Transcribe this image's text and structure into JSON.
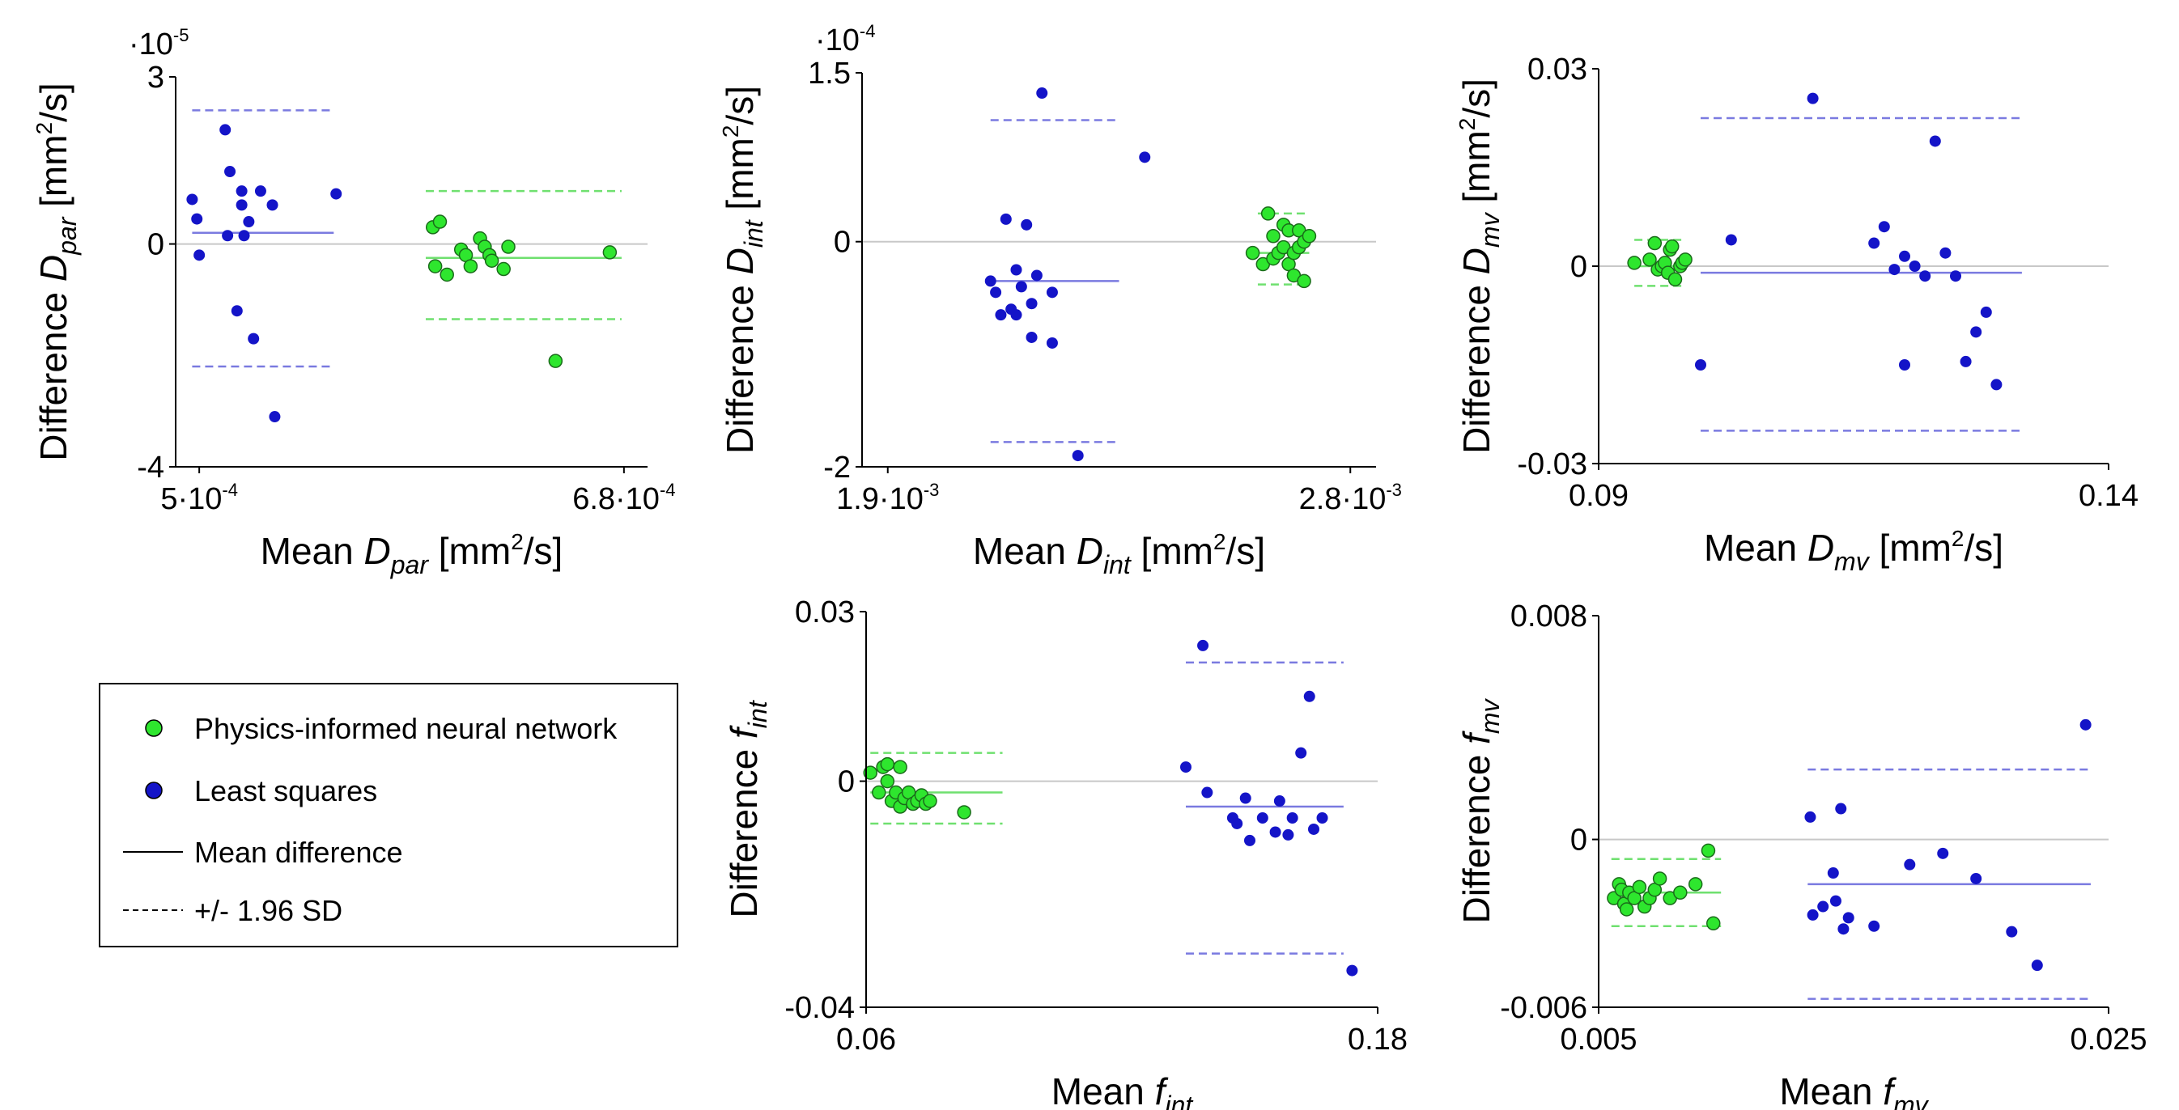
{
  "colors": {
    "pinn": "#2ee62e",
    "ls": "#1414c8",
    "ls_line": "#7a7ae0",
    "pinn_line": "#6fe06f",
    "zero_line": "#c8c8c8",
    "axis": "#000000"
  },
  "legend": {
    "items": [
      {
        "label": "Physics-informed neural network",
        "kind": "pinn"
      },
      {
        "label": "Least squares",
        "kind": "ls"
      },
      {
        "label": "Mean difference",
        "kind": "solid"
      },
      {
        "label": "+/- 1.96 SD",
        "kind": "dashed"
      }
    ]
  },
  "chart_data": [
    {
      "type": "scatter",
      "id": "dpar",
      "title": "",
      "xlabel": {
        "pre": "Mean ",
        "sym": "D",
        "sub": "par",
        "unit": " [mm²/s]"
      },
      "ylabel": {
        "pre": "Difference ",
        "sym": "D",
        "sub": "par",
        "unit": " [mm²/s]"
      },
      "exponent": "·10-5",
      "xlim": [
        0.49,
        0.69
      ],
      "ylim": [
        -4,
        3
      ],
      "xticks": [
        {
          "v": 0.5,
          "label": "5·10-4"
        },
        {
          "v": 0.68,
          "label": "6.8·10-4"
        }
      ],
      "yticks": [
        {
          "v": 3,
          "label": "3"
        },
        {
          "v": 0,
          "label": "0"
        },
        {
          "v": -4,
          "label": "-4"
        }
      ],
      "series": [
        {
          "name": "Least squares",
          "kind": "ls",
          "mean": 0.2,
          "loa": [
            2.4,
            -2.2
          ],
          "line_x": [
            0.497,
            0.557
          ],
          "points": [
            [
              0.497,
              0.8
            ],
            [
              0.499,
              0.45
            ],
            [
              0.5,
              -0.2
            ],
            [
              0.511,
              2.05
            ],
            [
              0.513,
              1.3
            ],
            [
              0.512,
              0.15
            ],
            [
              0.516,
              -1.2
            ],
            [
              0.518,
              0.7
            ],
            [
              0.518,
              0.95
            ],
            [
              0.519,
              0.15
            ],
            [
              0.521,
              0.4
            ],
            [
              0.523,
              -1.7
            ],
            [
              0.526,
              0.95
            ],
            [
              0.531,
              0.7
            ],
            [
              0.558,
              0.9
            ],
            [
              0.532,
              -3.1
            ]
          ]
        },
        {
          "name": "Physics-informed neural network",
          "kind": "pinn",
          "mean": -0.25,
          "loa": [
            0.95,
            -1.35
          ],
          "line_x": [
            0.596,
            0.679
          ],
          "points": [
            [
              0.599,
              0.3
            ],
            [
              0.6,
              -0.4
            ],
            [
              0.602,
              0.4
            ],
            [
              0.605,
              -0.55
            ],
            [
              0.611,
              -0.1
            ],
            [
              0.613,
              -0.2
            ],
            [
              0.615,
              -0.4
            ],
            [
              0.619,
              0.1
            ],
            [
              0.621,
              -0.05
            ],
            [
              0.623,
              -0.2
            ],
            [
              0.624,
              -0.3
            ],
            [
              0.629,
              -0.45
            ],
            [
              0.631,
              -0.05
            ],
            [
              0.651,
              -2.1
            ],
            [
              0.674,
              -0.15
            ]
          ]
        }
      ]
    },
    {
      "type": "scatter",
      "id": "dint",
      "title": "",
      "xlabel": {
        "pre": "Mean ",
        "sym": "D",
        "sub": "int",
        "unit": " [mm²/s]"
      },
      "ylabel": {
        "pre": "Difference ",
        "sym": "D",
        "sub": "int",
        "unit": " [mm²/s]"
      },
      "exponent": "·10-4",
      "xlim": [
        1.85,
        2.85
      ],
      "ylim": [
        -2,
        1.5
      ],
      "xticks": [
        {
          "v": 1.9,
          "label": "1.9·10-3"
        },
        {
          "v": 2.8,
          "label": "2.8·10-3"
        }
      ],
      "yticks": [
        {
          "v": 1.5,
          "label": "1.5"
        },
        {
          "v": 0,
          "label": "0"
        },
        {
          "v": -2,
          "label": "-2"
        }
      ],
      "series": [
        {
          "name": "Least squares",
          "kind": "ls",
          "mean": -0.35,
          "loa": [
            1.08,
            -1.78
          ],
          "line_x": [
            2.1,
            2.35
          ],
          "points": [
            [
              2.1,
              -0.35
            ],
            [
              2.11,
              -0.45
            ],
            [
              2.12,
              -0.65
            ],
            [
              2.13,
              0.2
            ],
            [
              2.14,
              -0.6
            ],
            [
              2.15,
              -0.25
            ],
            [
              2.15,
              -0.65
            ],
            [
              2.16,
              -0.4
            ],
            [
              2.17,
              0.15
            ],
            [
              2.18,
              -0.55
            ],
            [
              2.18,
              -0.85
            ],
            [
              2.19,
              -0.3
            ],
            [
              2.2,
              1.32
            ],
            [
              2.22,
              -0.45
            ],
            [
              2.22,
              -0.9
            ],
            [
              2.27,
              -1.9
            ],
            [
              2.4,
              0.75
            ]
          ]
        },
        {
          "name": "Physics-informed neural network",
          "kind": "pinn",
          "mean": -0.1,
          "loa": [
            0.25,
            -0.38
          ],
          "line_x": [
            2.62,
            2.72
          ],
          "points": [
            [
              2.61,
              -0.1
            ],
            [
              2.63,
              -0.2
            ],
            [
              2.64,
              0.25
            ],
            [
              2.65,
              0.05
            ],
            [
              2.65,
              -0.15
            ],
            [
              2.66,
              -0.1
            ],
            [
              2.67,
              0.15
            ],
            [
              2.67,
              -0.05
            ],
            [
              2.68,
              -0.2
            ],
            [
              2.68,
              0.1
            ],
            [
              2.69,
              -0.3
            ],
            [
              2.69,
              -0.1
            ],
            [
              2.7,
              0.1
            ],
            [
              2.7,
              -0.05
            ],
            [
              2.71,
              0.0
            ],
            [
              2.71,
              -0.35
            ],
            [
              2.72,
              0.05
            ]
          ]
        }
      ]
    },
    {
      "type": "scatter",
      "id": "dmv",
      "title": "",
      "xlabel": {
        "pre": "Mean ",
        "sym": "D",
        "sub": "mv",
        "unit": " [mm²/s]"
      },
      "ylabel": {
        "pre": "Difference ",
        "sym": "D",
        "sub": "mv",
        "unit": " [mm²/s]"
      },
      "exponent": "",
      "xlim": [
        0.09,
        0.14
      ],
      "ylim": [
        -0.03,
        0.03
      ],
      "xticks": [
        {
          "v": 0.09,
          "label": "0.09"
        },
        {
          "v": 0.14,
          "label": "0.14"
        }
      ],
      "yticks": [
        {
          "v": 0.03,
          "label": "0.03"
        },
        {
          "v": 0,
          "label": "0"
        },
        {
          "v": -0.03,
          "label": "-0.03"
        }
      ],
      "series": [
        {
          "name": "Least squares",
          "kind": "ls",
          "mean": -0.001,
          "loa": [
            0.0225,
            -0.025
          ],
          "line_x": [
            0.1,
            0.1315
          ],
          "points": [
            [
              0.1,
              -0.015
            ],
            [
              0.103,
              0.004
            ],
            [
              0.111,
              0.0255
            ],
            [
              0.117,
              0.0035
            ],
            [
              0.118,
              0.006
            ],
            [
              0.119,
              -0.0005
            ],
            [
              0.12,
              0.0015
            ],
            [
              0.12,
              -0.015
            ],
            [
              0.121,
              0.0
            ],
            [
              0.122,
              -0.0015
            ],
            [
              0.123,
              0.019
            ],
            [
              0.124,
              0.002
            ],
            [
              0.125,
              -0.0015
            ],
            [
              0.126,
              -0.0145
            ],
            [
              0.127,
              -0.01
            ],
            [
              0.128,
              -0.007
            ],
            [
              0.129,
              -0.018
            ]
          ]
        },
        {
          "name": "Physics-informed neural network",
          "kind": "pinn",
          "mean": 0.0,
          "loa": [
            0.004,
            -0.003
          ],
          "line_x": [
            0.0935,
            0.0985
          ],
          "points": [
            [
              0.0935,
              0.0005
            ],
            [
              0.095,
              0.001
            ],
            [
              0.0955,
              0.0035
            ],
            [
              0.0958,
              -0.0005
            ],
            [
              0.0962,
              0.0
            ],
            [
              0.0965,
              0.0005
            ],
            [
              0.0968,
              -0.001
            ],
            [
              0.097,
              0.0025
            ],
            [
              0.0972,
              0.003
            ],
            [
              0.0975,
              -0.002
            ],
            [
              0.098,
              0.0
            ],
            [
              0.0982,
              0.0005
            ],
            [
              0.0985,
              0.001
            ]
          ]
        }
      ]
    },
    {
      "type": "scatter",
      "id": "fint",
      "title": "",
      "xlabel": {
        "pre": "Mean ",
        "sym": "f",
        "sub": "int",
        "unit": ""
      },
      "ylabel": {
        "pre": "Difference ",
        "sym": "f",
        "sub": "int",
        "unit": ""
      },
      "exponent": "",
      "xlim": [
        0.06,
        0.18
      ],
      "ylim": [
        -0.04,
        0.03
      ],
      "xticks": [
        {
          "v": 0.06,
          "label": "0.06"
        },
        {
          "v": 0.18,
          "label": "0.18"
        }
      ],
      "yticks": [
        {
          "v": 0.03,
          "label": "0.03"
        },
        {
          "v": 0,
          "label": "0"
        },
        {
          "v": -0.04,
          "label": "-0.04"
        }
      ],
      "series": [
        {
          "name": "Physics-informed neural network",
          "kind": "pinn",
          "mean": -0.002,
          "loa": [
            0.005,
            -0.0075
          ],
          "line_x": [
            0.061,
            0.092
          ],
          "points": [
            [
              0.061,
              0.0015
            ],
            [
              0.063,
              -0.002
            ],
            [
              0.064,
              0.0025
            ],
            [
              0.065,
              0.003
            ],
            [
              0.065,
              0.0
            ],
            [
              0.066,
              -0.0035
            ],
            [
              0.067,
              -0.002
            ],
            [
              0.068,
              -0.0045
            ],
            [
              0.068,
              0.0025
            ],
            [
              0.069,
              -0.003
            ],
            [
              0.07,
              -0.002
            ],
            [
              0.071,
              -0.004
            ],
            [
              0.072,
              -0.0035
            ],
            [
              0.073,
              -0.0025
            ],
            [
              0.074,
              -0.004
            ],
            [
              0.075,
              -0.0035
            ],
            [
              0.083,
              -0.0055
            ]
          ]
        },
        {
          "name": "Least squares",
          "kind": "ls",
          "mean": -0.0045,
          "loa": [
            0.021,
            -0.0305
          ],
          "line_x": [
            0.135,
            0.172
          ],
          "points": [
            [
              0.135,
              0.0025
            ],
            [
              0.139,
              0.024
            ],
            [
              0.14,
              -0.002
            ],
            [
              0.146,
              -0.0065
            ],
            [
              0.147,
              -0.0075
            ],
            [
              0.149,
              -0.003
            ],
            [
              0.15,
              -0.0105
            ],
            [
              0.153,
              -0.0065
            ],
            [
              0.156,
              -0.009
            ],
            [
              0.157,
              -0.0035
            ],
            [
              0.159,
              -0.0095
            ],
            [
              0.16,
              -0.0065
            ],
            [
              0.162,
              0.005
            ],
            [
              0.164,
              0.015
            ],
            [
              0.165,
              -0.0085
            ],
            [
              0.167,
              -0.0065
            ],
            [
              0.174,
              -0.0335
            ]
          ]
        }
      ]
    },
    {
      "type": "scatter",
      "id": "fmv",
      "title": "",
      "xlabel": {
        "pre": "Mean ",
        "sym": "f",
        "sub": "mv",
        "unit": ""
      },
      "ylabel": {
        "pre": "Difference ",
        "sym": "f",
        "sub": "mv",
        "unit": ""
      },
      "exponent": "",
      "xlim": [
        0.005,
        0.025
      ],
      "ylim": [
        -0.006,
        0.008
      ],
      "xticks": [
        {
          "v": 0.005,
          "label": "0.005"
        },
        {
          "v": 0.025,
          "label": "0.025"
        }
      ],
      "yticks": [
        {
          "v": 0.008,
          "label": "0.008"
        },
        {
          "v": 0,
          "label": "0"
        },
        {
          "v": -0.006,
          "label": "-0.006"
        }
      ],
      "series": [
        {
          "name": "Physics-informed neural network",
          "kind": "pinn",
          "mean": -0.0019,
          "loa": [
            -0.0007,
            -0.0031
          ],
          "line_x": [
            0.0055,
            0.0098
          ],
          "points": [
            [
              0.0056,
              -0.0021
            ],
            [
              0.0058,
              -0.0016
            ],
            [
              0.0059,
              -0.0018
            ],
            [
              0.006,
              -0.0023
            ],
            [
              0.0061,
              -0.0025
            ],
            [
              0.0062,
              -0.0019
            ],
            [
              0.0064,
              -0.0021
            ],
            [
              0.0066,
              -0.0017
            ],
            [
              0.0068,
              -0.0024
            ],
            [
              0.007,
              -0.0021
            ],
            [
              0.0072,
              -0.0018
            ],
            [
              0.0074,
              -0.0014
            ],
            [
              0.0078,
              -0.0021
            ],
            [
              0.0082,
              -0.0019
            ],
            [
              0.0088,
              -0.0016
            ],
            [
              0.0093,
              -0.0004
            ],
            [
              0.0095,
              -0.003
            ]
          ]
        },
        {
          "name": "Least squares",
          "kind": "ls",
          "mean": -0.0016,
          "loa": [
            0.0025,
            -0.0057
          ],
          "line_x": [
            0.0132,
            0.0243
          ],
          "points": [
            [
              0.0133,
              0.0008
            ],
            [
              0.0134,
              -0.0027
            ],
            [
              0.0138,
              -0.0024
            ],
            [
              0.0142,
              -0.0012
            ],
            [
              0.0143,
              -0.0022
            ],
            [
              0.0145,
              0.0011
            ],
            [
              0.0146,
              -0.0032
            ],
            [
              0.0148,
              -0.0028
            ],
            [
              0.0158,
              -0.0031
            ],
            [
              0.0172,
              -0.0009
            ],
            [
              0.0185,
              -0.0005
            ],
            [
              0.0198,
              -0.0014
            ],
            [
              0.0212,
              -0.0033
            ],
            [
              0.0222,
              -0.0045
            ],
            [
              0.0241,
              0.0041
            ]
          ]
        }
      ]
    }
  ]
}
